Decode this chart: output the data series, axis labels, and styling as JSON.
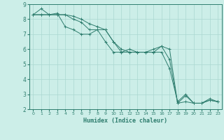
{
  "xlabel": "Humidex (Indice chaleur)",
  "bg_color": "#cceee8",
  "grid_color": "#aad8d0",
  "line_color": "#2e7d6e",
  "xlim": [
    -0.5,
    23.5
  ],
  "ylim": [
    2,
    9
  ],
  "yticks": [
    2,
    3,
    4,
    5,
    6,
    7,
    8,
    9
  ],
  "xticks": [
    0,
    1,
    2,
    3,
    4,
    5,
    6,
    7,
    8,
    9,
    10,
    11,
    12,
    13,
    14,
    15,
    16,
    17,
    18,
    19,
    20,
    21,
    22,
    23
  ],
  "series": [
    {
      "x": [
        0,
        1,
        2,
        3,
        4,
        5,
        6,
        7,
        8,
        9,
        10,
        11,
        12,
        13,
        14,
        15,
        16,
        17,
        18,
        19,
        20,
        21,
        22,
        23
      ],
      "y": [
        8.3,
        8.7,
        8.3,
        8.4,
        7.5,
        7.3,
        7.0,
        7.0,
        7.3,
        6.5,
        5.8,
        5.8,
        6.0,
        5.8,
        5.8,
        6.0,
        6.2,
        6.0,
        2.4,
        2.9,
        2.4,
        2.4,
        2.6,
        2.5
      ]
    },
    {
      "x": [
        0,
        1,
        2,
        3,
        4,
        5,
        6,
        7,
        8,
        9,
        10,
        11,
        12,
        13,
        14,
        15,
        16,
        17,
        18,
        19,
        20,
        21,
        22,
        23
      ],
      "y": [
        8.3,
        8.3,
        8.3,
        8.3,
        8.3,
        8.2,
        8.0,
        7.7,
        7.5,
        7.3,
        6.5,
        5.8,
        5.8,
        5.8,
        5.8,
        5.8,
        5.8,
        4.7,
        2.5,
        3.0,
        2.4,
        2.4,
        2.7,
        2.5
      ]
    },
    {
      "x": [
        0,
        1,
        2,
        3,
        4,
        5,
        6,
        7,
        8,
        9,
        10,
        11,
        12,
        13,
        14,
        15,
        16,
        17,
        18,
        19,
        20,
        21,
        22,
        23
      ],
      "y": [
        8.3,
        8.3,
        8.3,
        8.3,
        8.3,
        8.0,
        7.8,
        7.3,
        7.3,
        7.3,
        6.5,
        6.0,
        5.8,
        5.8,
        5.8,
        5.8,
        6.2,
        5.3,
        2.4,
        2.5,
        2.4,
        2.4,
        2.6,
        2.5
      ]
    }
  ]
}
